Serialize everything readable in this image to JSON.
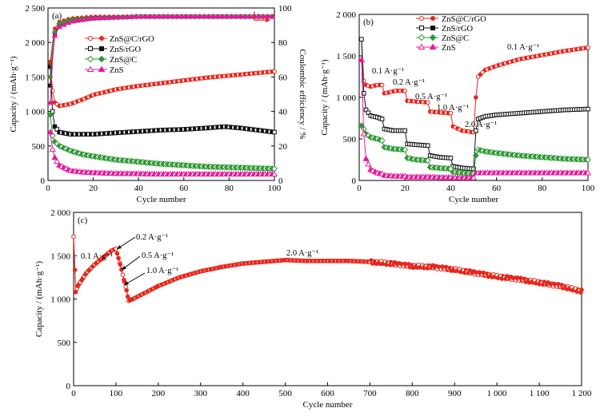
{
  "colors": {
    "zns_c_rgo": "#e8261c",
    "zns_rgo": "#111111",
    "zns_c": "#2e9a35",
    "zns": "#e8199c"
  },
  "panel_a": {
    "label": "(a)",
    "xlabel": "Cycle number",
    "ylabel": "Capacity / (mAh·g⁻¹)",
    "y2label": "Coulombic efficiency / %",
    "xticks": [
      "0",
      "20",
      "40",
      "60",
      "80",
      "100"
    ],
    "yticks": [
      "0",
      "500",
      "1 000",
      "1 500",
      "2 000",
      "2 500"
    ],
    "y2ticks": [
      "0",
      "20",
      "40",
      "60",
      "80",
      "100"
    ],
    "legend": [
      "ZnS@C/rGO",
      "ZnS/rGO",
      "ZnS@C",
      "ZnS"
    ]
  },
  "panel_b": {
    "label": "(b)",
    "xlabel": "Cycle number",
    "ylabel": "Capacity / (mAh·g⁻¹)",
    "xticks": [
      "0",
      "20",
      "40",
      "60",
      "80",
      "100"
    ],
    "yticks": [
      "0",
      "500",
      "1 000",
      "1 500",
      "2 000"
    ],
    "legend": [
      "ZnS@C/rGO",
      "ZnS/rGO",
      "ZnS@C",
      "ZnS"
    ],
    "annotations": [
      "0.1 A·g⁻¹",
      "0.2 A·g⁻¹",
      "0.5 A·g⁻¹",
      "1.0 A·g⁻¹",
      "2.0 A·g⁻¹",
      "0.1 A·g⁻¹"
    ]
  },
  "panel_c": {
    "label": "(c)",
    "xlabel": "Cycle number",
    "ylabel": "Capacity / (mAh·g⁻¹)",
    "xticks": [
      "0",
      "100",
      "200",
      "300",
      "400",
      "500",
      "600",
      "700",
      "800",
      "900",
      "1 000",
      "1 100",
      "1 200"
    ],
    "yticks": [
      "0",
      "500",
      "1 000",
      "1 500",
      "2 000"
    ],
    "annotations": [
      "0.1 A·g⁻¹",
      "0.2 A·g⁻¹",
      "0.5 A·g⁻¹",
      "1.0 A·g⁻¹",
      "2.0 A·g⁻¹"
    ]
  },
  "chart_data": [
    {
      "type": "scatter",
      "panel": "a",
      "xlim": [
        0,
        100
      ],
      "ylim": [
        0,
        2500
      ],
      "y2lim": [
        0,
        100
      ],
      "series": [
        {
          "name": "ZnS@C/rGO",
          "axis": "left",
          "x": [
            1,
            2,
            3,
            5,
            10,
            15,
            20,
            30,
            40,
            50,
            60,
            70,
            80,
            90,
            100
          ],
          "values": [
            1720,
            1300,
            1130,
            1080,
            1110,
            1170,
            1240,
            1320,
            1370,
            1410,
            1450,
            1490,
            1520,
            1550,
            1580
          ]
        },
        {
          "name": "ZnS/rGO",
          "axis": "left",
          "x": [
            1,
            2,
            3,
            5,
            10,
            20,
            30,
            40,
            50,
            60,
            70,
            78,
            85,
            90,
            100
          ],
          "values": [
            1650,
            1000,
            780,
            700,
            670,
            670,
            690,
            710,
            730,
            740,
            760,
            780,
            760,
            740,
            700
          ]
        },
        {
          "name": "ZnS@C",
          "axis": "left",
          "x": [
            1,
            2,
            3,
            5,
            10,
            15,
            20,
            30,
            40,
            50,
            60,
            70,
            80,
            90,
            100
          ],
          "values": [
            950,
            650,
            560,
            500,
            430,
            380,
            350,
            300,
            270,
            240,
            220,
            200,
            190,
            180,
            170
          ]
        },
        {
          "name": "ZnS",
          "axis": "left",
          "x": [
            1,
            2,
            3,
            5,
            10,
            15,
            20,
            30,
            40,
            50,
            60,
            70,
            80,
            90,
            100
          ],
          "values": [
            700,
            450,
            330,
            220,
            140,
            120,
            110,
            100,
            95,
            90,
            90,
            90,
            90,
            90,
            90
          ]
        },
        {
          "name": "ZnS@C/rGO",
          "axis": "right",
          "x": [
            1,
            2,
            3,
            5,
            10,
            20,
            40,
            60,
            80,
            100
          ],
          "values": [
            68,
            80,
            88,
            92,
            94,
            95,
            95,
            95,
            95,
            95
          ]
        },
        {
          "name": "ZnS/rGO",
          "axis": "right",
          "x": [
            1,
            2,
            3,
            5,
            10,
            20,
            40,
            60,
            80,
            100
          ],
          "values": [
            55,
            72,
            85,
            90,
            93,
            94,
            95,
            95,
            95,
            95
          ]
        },
        {
          "name": "ZnS@C",
          "axis": "right",
          "x": [
            1,
            2,
            3,
            5,
            10,
            20,
            40,
            60,
            80,
            100
          ],
          "values": [
            60,
            78,
            86,
            91,
            93,
            94,
            95,
            95,
            95,
            95
          ]
        },
        {
          "name": "ZnS",
          "axis": "right",
          "x": [
            1,
            2,
            3,
            5,
            10,
            20,
            40,
            60,
            80,
            100
          ],
          "values": [
            45,
            70,
            84,
            89,
            92,
            94,
            95,
            95,
            95,
            95
          ]
        }
      ]
    },
    {
      "type": "scatter",
      "panel": "b",
      "xlim": [
        0,
        100
      ],
      "ylim": [
        0,
        2000
      ],
      "series": [
        {
          "name": "ZnS@C/rGO",
          "x": [
            1,
            2,
            3,
            5,
            8,
            10,
            11,
            13,
            16,
            20,
            21,
            25,
            30,
            31,
            35,
            40,
            41,
            45,
            50,
            51,
            52,
            55,
            60,
            70,
            80,
            90,
            100
          ],
          "values": [
            1700,
            1200,
            1150,
            1130,
            1150,
            1150,
            1050,
            1060,
            1080,
            1080,
            960,
            950,
            940,
            830,
            820,
            810,
            650,
            600,
            580,
            1000,
            1250,
            1330,
            1380,
            1460,
            1510,
            1560,
            1600
          ]
        },
        {
          "name": "ZnS/rGO",
          "x": [
            1,
            2,
            3,
            5,
            8,
            10,
            11,
            15,
            20,
            21,
            25,
            30,
            31,
            35,
            40,
            41,
            45,
            50,
            51,
            52,
            55,
            60,
            70,
            80,
            90,
            100
          ],
          "values": [
            1700,
            1050,
            850,
            780,
            760,
            740,
            620,
            600,
            600,
            440,
            430,
            420,
            300,
            280,
            270,
            170,
            150,
            140,
            600,
            740,
            770,
            790,
            810,
            830,
            850,
            860
          ]
        },
        {
          "name": "ZnS@C",
          "x": [
            1,
            2,
            3,
            5,
            8,
            10,
            11,
            15,
            20,
            21,
            25,
            30,
            31,
            35,
            40,
            41,
            45,
            50,
            51,
            52,
            55,
            60,
            70,
            80,
            90,
            100
          ],
          "values": [
            660,
            620,
            560,
            520,
            500,
            480,
            400,
            380,
            370,
            270,
            250,
            240,
            160,
            150,
            140,
            100,
            90,
            80,
            300,
            370,
            350,
            330,
            300,
            280,
            260,
            250
          ]
        },
        {
          "name": "ZnS",
          "x": [
            1,
            2,
            3,
            5,
            8,
            10,
            11,
            15,
            20,
            21,
            25,
            30,
            31,
            35,
            40,
            41,
            45,
            50,
            51,
            52,
            55,
            60,
            70,
            80,
            90,
            100
          ],
          "values": [
            1450,
            560,
            260,
            130,
            90,
            80,
            60,
            50,
            50,
            40,
            40,
            40,
            40,
            35,
            35,
            30,
            30,
            30,
            90,
            90,
            90,
            90,
            90,
            90,
            90,
            90
          ]
        }
      ]
    },
    {
      "type": "scatter",
      "panel": "c",
      "xlim": [
        0,
        1200
      ],
      "ylim": [
        0,
        2000
      ],
      "series": [
        {
          "name": "ZnS@C/rGO",
          "x": [
            0,
            5,
            10,
            30,
            50,
            70,
            90,
            100,
            110,
            120,
            125,
            130,
            140,
            160,
            200,
            250,
            300,
            350,
            400,
            450,
            500,
            550,
            600,
            650,
            700,
            750,
            800,
            850,
            900,
            950,
            1000,
            1050,
            1100,
            1150,
            1200
          ],
          "values": [
            1720,
            1080,
            1150,
            1300,
            1400,
            1480,
            1560,
            1580,
            1400,
            1200,
            1100,
            980,
            1000,
            1050,
            1150,
            1250,
            1320,
            1370,
            1410,
            1430,
            1450,
            1440,
            1440,
            1440,
            1430,
            1410,
            1380,
            1370,
            1340,
            1300,
            1260,
            1230,
            1190,
            1150,
            1090
          ]
        }
      ]
    }
  ]
}
